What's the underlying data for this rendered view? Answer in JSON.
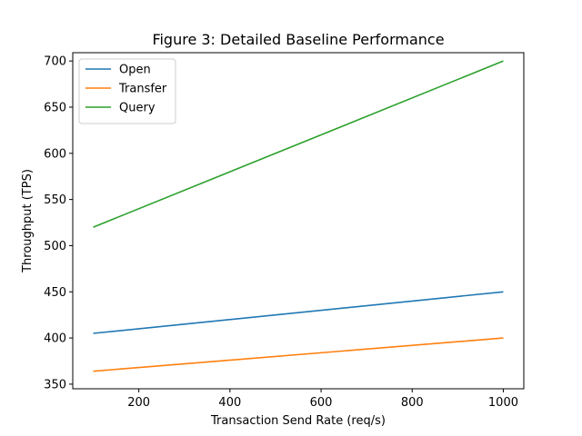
{
  "chart_data": {
    "type": "line",
    "title": "Figure 3: Detailed Baseline Performance",
    "xlabel": "Transaction Send Rate (req/s)",
    "ylabel": "Throughput (TPS)",
    "xlim": [
      55,
      1045
    ],
    "ylim": [
      345,
      709
    ],
    "xticks": [
      200,
      400,
      600,
      800,
      1000
    ],
    "yticks": [
      350,
      400,
      450,
      500,
      550,
      600,
      650,
      700
    ],
    "grid": false,
    "legend_position": "upper-left",
    "series": [
      {
        "name": "Open",
        "color": "#1f77b4",
        "x": [
          100,
          1000
        ],
        "y": [
          405,
          450
        ]
      },
      {
        "name": "Transfer",
        "color": "#ff7f0e",
        "x": [
          100,
          1000
        ],
        "y": [
          364,
          400
        ]
      },
      {
        "name": "Query",
        "color": "#2ca02c",
        "x": [
          100,
          1000
        ],
        "y": [
          520,
          700
        ]
      }
    ]
  }
}
